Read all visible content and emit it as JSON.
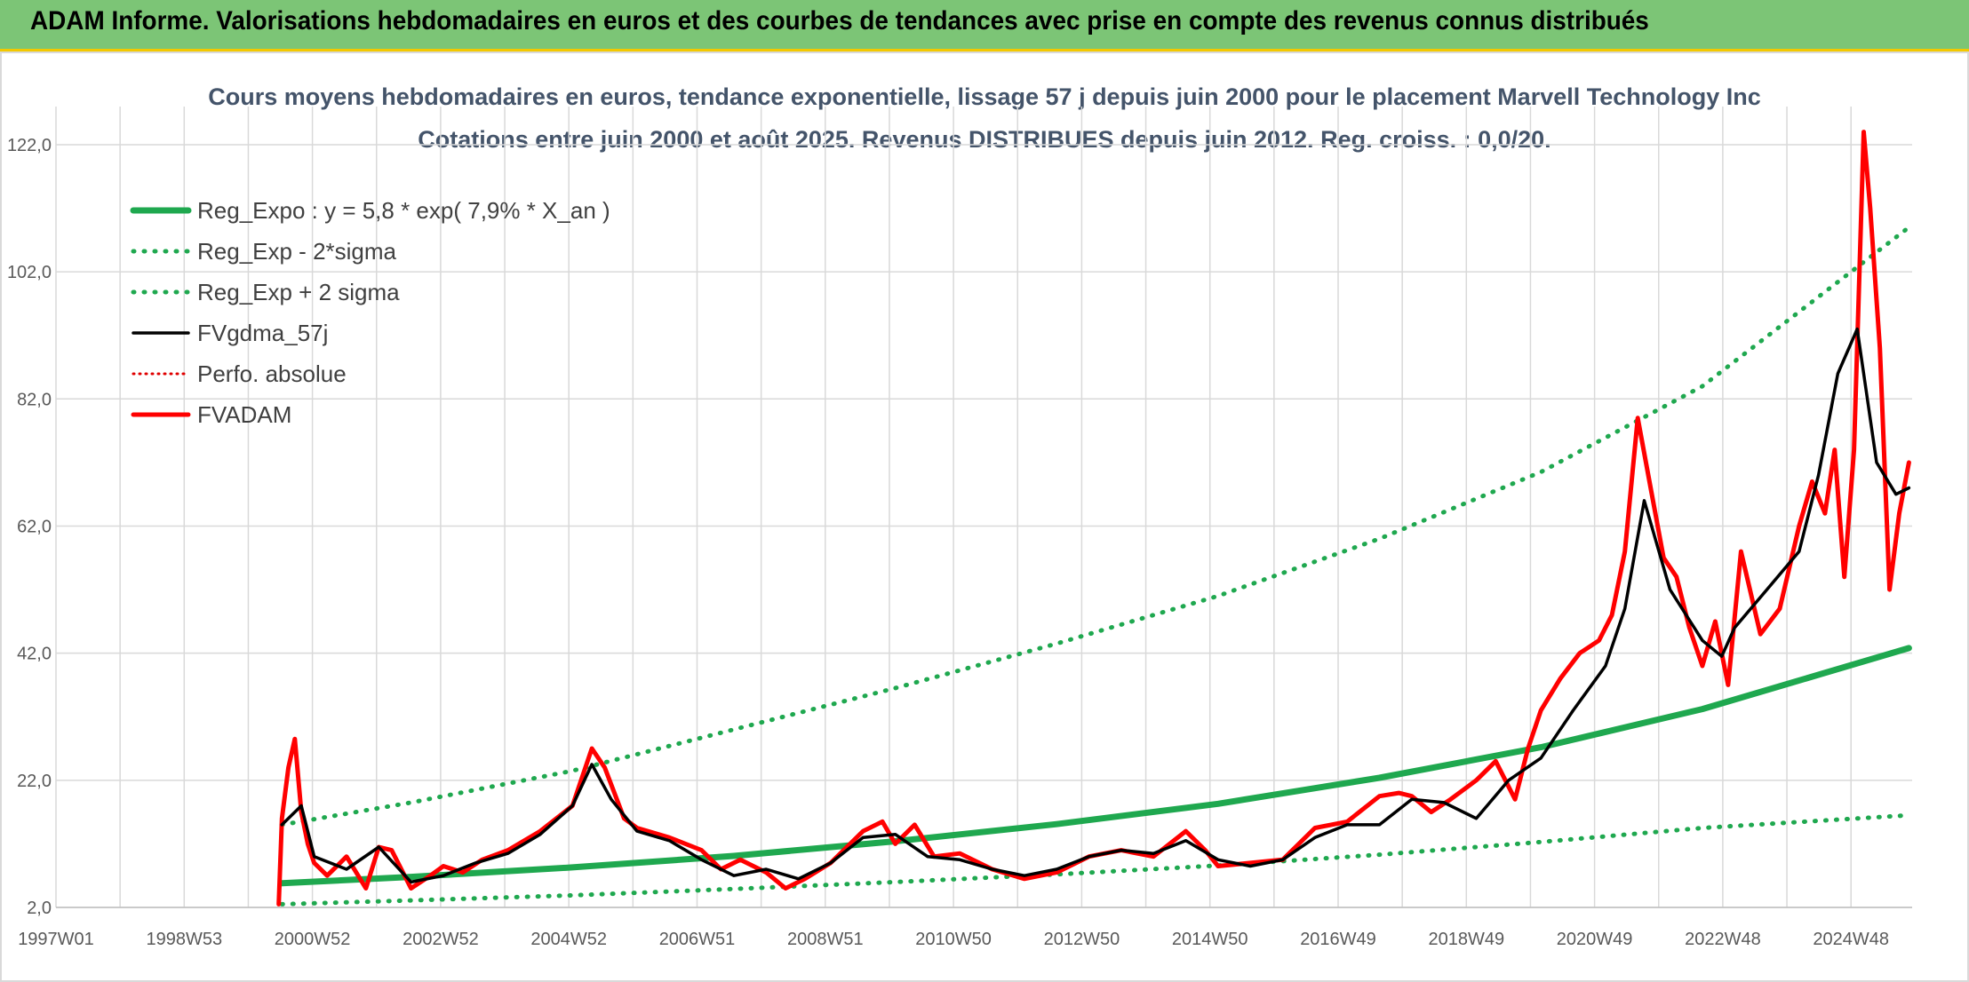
{
  "banner": {
    "title": "ADAM Informe. Valorisations hebdomadaires en euros et des courbes de tendances avec prise en compte des revenus connus distribués"
  },
  "chart_data": {
    "type": "line",
    "title": "Cours moyens hebdomadaires en euros, tendance exponentielle, lissage 57 j depuis juin 2000 pour le placement Marvell Technology Inc",
    "subtitle": "Cotations entre juin 2000 et août 2025. Revenus DISTRIBUES depuis juin 2012. Reg. croiss. : 0,0/20.",
    "xlabel": "",
    "ylabel": "",
    "ylim": [
      2,
      128
    ],
    "xlim": [
      1997.0,
      2025.75
    ],
    "grid": true,
    "legend_position": "top-left",
    "x_tick_labels": [
      "1997W01",
      "1998W53",
      "2000W52",
      "2002W52",
      "2004W52",
      "2006W51",
      "2008W51",
      "2010W50",
      "2012W50",
      "2014W50",
      "2016W49",
      "2018W49",
      "2020W49",
      "2022W48",
      "2024W48"
    ],
    "y_tick_labels": [
      "2,0",
      "22,0",
      "42,0",
      "62,0",
      "82,0",
      "102,0",
      "122,0"
    ],
    "y_ticks": [
      2,
      22,
      42,
      62,
      82,
      102,
      122
    ],
    "series": [
      {
        "name": "Reg_Expo : y = 5,8 * exp( 7,9% *  X_an )",
        "color": "#1fa84f",
        "style": "solid",
        "x": [
          2000.5,
          2002.5,
          2005.0,
          2007.5,
          2010.0,
          2012.5,
          2015.0,
          2017.5,
          2020.0,
          2022.5,
          2025.7
        ],
        "y": [
          5.8,
          6.8,
          8.3,
          10.1,
          12.4,
          15.1,
          18.3,
          22.4,
          27.2,
          33.2,
          42.8
        ]
      },
      {
        "name": "Reg_Exp - 2*sigma",
        "color": "#1fa84f",
        "style": "dotted",
        "x": [
          2000.5,
          2002.5,
          2005.0,
          2007.5,
          2010.0,
          2012.5,
          2015.0,
          2017.5,
          2020.0,
          2022.5,
          2025.7
        ],
        "y": [
          2.5,
          3.1,
          3.9,
          4.9,
          6.0,
          7.2,
          8.6,
          10.3,
          12.3,
          14.5,
          16.5
        ]
      },
      {
        "name": "Reg_Exp + 2 sigma",
        "color": "#1fa84f",
        "style": "dotted",
        "x": [
          2000.5,
          2002.5,
          2005.0,
          2007.5,
          2010.0,
          2012.5,
          2015.0,
          2017.5,
          2020.0,
          2022.5,
          2025.7
        ],
        "y": [
          15.0,
          18.5,
          23.5,
          30.0,
          36.5,
          43.5,
          51.0,
          60.0,
          70.5,
          84.0,
          109.0
        ]
      },
      {
        "name": "FVgdma_57j",
        "color": "#000000",
        "style": "solid",
        "x": [
          2000.5,
          2000.8,
          2001.0,
          2001.5,
          2002.0,
          2002.5,
          2003.0,
          2003.5,
          2004.0,
          2004.5,
          2005.0,
          2005.3,
          2005.6,
          2006.0,
          2006.5,
          2007.0,
          2007.5,
          2008.0,
          2008.5,
          2009.0,
          2009.5,
          2010.0,
          2010.5,
          2011.0,
          2011.5,
          2012.0,
          2012.5,
          2013.0,
          2013.5,
          2014.0,
          2014.5,
          2015.0,
          2015.5,
          2016.0,
          2016.5,
          2017.0,
          2017.5,
          2018.0,
          2018.5,
          2019.0,
          2019.5,
          2020.0,
          2020.5,
          2021.0,
          2021.3,
          2021.6,
          2022.0,
          2022.5,
          2022.8,
          2023.0,
          2023.5,
          2024.0,
          2024.3,
          2024.6,
          2024.9,
          2025.2,
          2025.5,
          2025.7
        ],
        "y": [
          15.0,
          18.0,
          10.0,
          8.0,
          11.5,
          6.0,
          7.0,
          9.0,
          10.5,
          13.5,
          18.0,
          24.5,
          19.0,
          14.0,
          12.5,
          9.5,
          7.0,
          8.0,
          6.5,
          9.0,
          13.0,
          13.5,
          10.0,
          9.5,
          8.0,
          7.0,
          8.0,
          10.0,
          11.0,
          10.5,
          12.5,
          9.5,
          8.5,
          9.5,
          13.0,
          15.0,
          15.0,
          19.0,
          18.5,
          16.0,
          22.0,
          25.5,
          33.0,
          40.0,
          49.0,
          66.0,
          52.0,
          44.0,
          41.5,
          46.0,
          52.0,
          58.0,
          70.0,
          86.0,
          93.0,
          72.0,
          67.0,
          68.0
        ]
      },
      {
        "name": "Perfo. absolue",
        "color": "#e00000",
        "style": "dotted",
        "x": [],
        "y": []
      },
      {
        "name": "FVADAM",
        "color": "#ff0000",
        "style": "solid",
        "x": [
          2000.45,
          2000.5,
          2000.6,
          2000.7,
          2000.8,
          2000.9,
          2001.0,
          2001.2,
          2001.5,
          2001.8,
          2002.0,
          2002.2,
          2002.5,
          2002.8,
          2003.0,
          2003.3,
          2003.6,
          2004.0,
          2004.5,
          2005.0,
          2005.3,
          2005.5,
          2005.8,
          2006.0,
          2006.5,
          2007.0,
          2007.3,
          2007.6,
          2008.0,
          2008.3,
          2008.6,
          2009.0,
          2009.5,
          2009.8,
          2010.0,
          2010.3,
          2010.6,
          2011.0,
          2011.5,
          2012.0,
          2012.5,
          2013.0,
          2013.5,
          2014.0,
          2014.5,
          2014.8,
          2015.0,
          2015.5,
          2016.0,
          2016.5,
          2017.0,
          2017.5,
          2017.8,
          2018.0,
          2018.3,
          2018.6,
          2019.0,
          2019.3,
          2019.6,
          2019.8,
          2020.0,
          2020.3,
          2020.6,
          2020.9,
          2021.1,
          2021.3,
          2021.5,
          2021.7,
          2021.9,
          2022.1,
          2022.3,
          2022.5,
          2022.7,
          2022.9,
          2023.1,
          2023.4,
          2023.7,
          2024.0,
          2024.2,
          2024.4,
          2024.55,
          2024.7,
          2024.85,
          2025.0,
          2025.1,
          2025.25,
          2025.4,
          2025.55,
          2025.7
        ],
        "y": [
          2.5,
          16.0,
          24.0,
          28.5,
          17.0,
          12.0,
          9.0,
          7.0,
          10.0,
          5.0,
          11.5,
          11.0,
          5.0,
          7.0,
          8.5,
          7.5,
          9.5,
          11.0,
          14.0,
          18.0,
          27.0,
          24.0,
          16.0,
          14.5,
          13.0,
          11.0,
          8.0,
          9.5,
          7.5,
          5.0,
          6.5,
          9.0,
          14.0,
          15.5,
          12.0,
          15.0,
          10.0,
          10.5,
          8.0,
          6.5,
          7.5,
          10.0,
          11.0,
          10.0,
          14.0,
          11.0,
          8.5,
          9.0,
          9.5,
          14.5,
          15.5,
          19.5,
          20.0,
          19.5,
          17.0,
          19.0,
          22.0,
          25.0,
          19.0,
          27.0,
          33.0,
          38.0,
          42.0,
          44.0,
          48.0,
          58.0,
          79.0,
          68.0,
          57.0,
          54.0,
          46.0,
          40.0,
          47.0,
          37.0,
          58.0,
          45.0,
          49.0,
          62.0,
          69.0,
          64.0,
          74.0,
          54.0,
          74.0,
          124.0,
          112.0,
          90.0,
          52.0,
          64.0,
          72.0
        ]
      }
    ]
  }
}
